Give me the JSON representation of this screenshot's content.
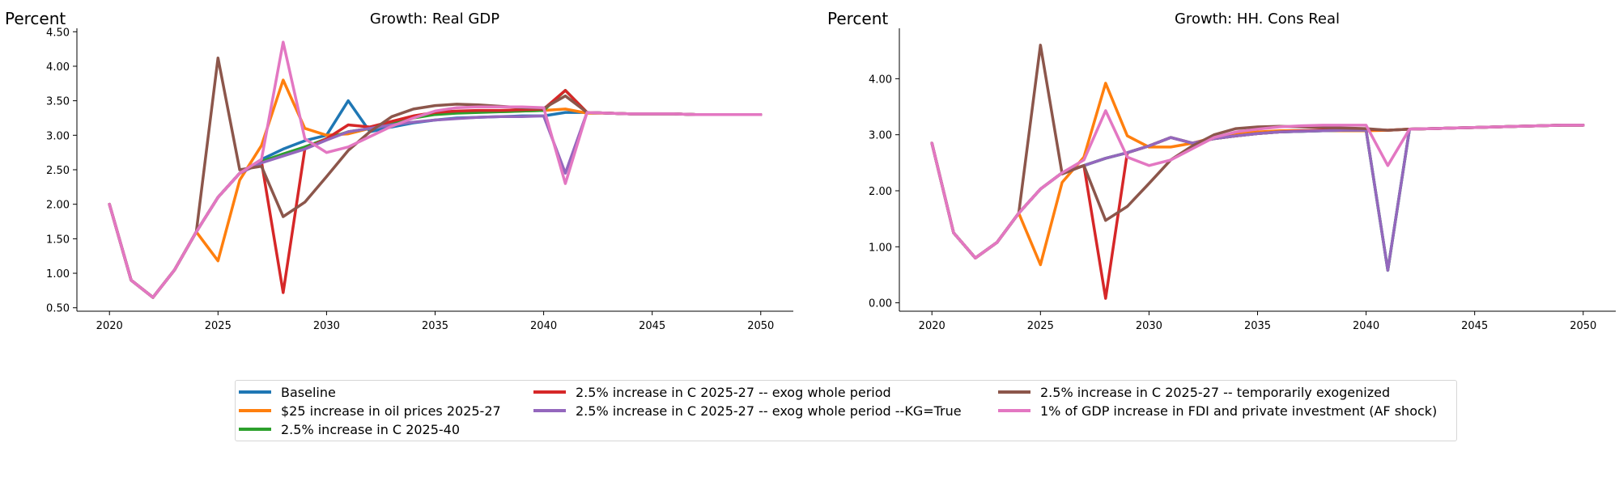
{
  "chart_data": [
    {
      "type": "line",
      "title": "Growth: Real GDP",
      "ylabel": "Percent",
      "xlabel": "",
      "xlim": [
        2018.5,
        2051.5
      ],
      "ylim": [
        0.45,
        4.55
      ],
      "xticks": [
        2020,
        2025,
        2030,
        2035,
        2040,
        2045,
        2050
      ],
      "yticks": [
        "0.50",
        "1.00",
        "1.50",
        "2.00",
        "2.50",
        "3.00",
        "3.50",
        "4.00",
        "4.50"
      ],
      "x": [
        2020,
        2021,
        2022,
        2023,
        2024,
        2025,
        2026,
        2027,
        2028,
        2029,
        2030,
        2031,
        2032,
        2033,
        2034,
        2035,
        2036,
        2037,
        2038,
        2039,
        2040,
        2041,
        2042,
        2043,
        2044,
        2045,
        2046,
        2047,
        2048,
        2049,
        2050
      ],
      "series": [
        {
          "name": "Baseline",
          "values": [
            2.0,
            0.9,
            0.65,
            1.05,
            1.6,
            2.1,
            2.45,
            2.65,
            2.8,
            2.92,
            3.0,
            3.5,
            3.05,
            3.12,
            3.18,
            3.22,
            3.25,
            3.26,
            3.27,
            3.28,
            3.28,
            3.33,
            3.33,
            3.32,
            3.31,
            3.31,
            3.31,
            3.3,
            3.3,
            3.3,
            3.3
          ]
        },
        {
          "name": "$25 increase in oil prices 2025-27",
          "values": [
            2.0,
            0.9,
            0.65,
            1.05,
            1.6,
            1.18,
            2.35,
            2.85,
            3.8,
            3.1,
            3.0,
            3.02,
            3.1,
            3.2,
            3.27,
            3.31,
            3.33,
            3.34,
            3.34,
            3.35,
            3.36,
            3.38,
            3.32,
            3.32,
            3.31,
            3.31,
            3.31,
            3.3,
            3.3,
            3.3,
            3.3
          ]
        },
        {
          "name": "2.5% increase in C 2025-40",
          "values": [
            2.0,
            0.9,
            0.65,
            1.05,
            1.6,
            2.1,
            2.45,
            2.62,
            2.73,
            2.83,
            2.95,
            3.05,
            3.1,
            3.18,
            3.25,
            3.3,
            3.32,
            3.33,
            3.34,
            3.35,
            3.36,
            3.65,
            3.33,
            3.32,
            3.31,
            3.31,
            3.31,
            3.3,
            3.3,
            3.3,
            3.3
          ]
        },
        {
          "name": "2.5% increase in C 2025-27 -- exog whole period",
          "values": [
            2.0,
            0.9,
            0.65,
            1.05,
            1.6,
            2.1,
            2.45,
            2.62,
            0.72,
            2.8,
            2.95,
            3.15,
            3.12,
            3.2,
            3.28,
            3.33,
            3.35,
            3.36,
            3.36,
            3.37,
            3.38,
            3.65,
            3.33,
            3.32,
            3.31,
            3.31,
            3.31,
            3.3,
            3.3,
            3.3,
            3.3
          ]
        },
        {
          "name": "2.5% increase in C 2025-27 -- exog whole period --KG=True",
          "values": [
            2.0,
            0.9,
            0.65,
            1.05,
            1.6,
            2.1,
            2.45,
            2.6,
            2.7,
            2.8,
            2.93,
            3.05,
            3.1,
            3.15,
            3.19,
            3.22,
            3.24,
            3.26,
            3.27,
            3.27,
            3.28,
            2.45,
            3.33,
            3.32,
            3.31,
            3.31,
            3.31,
            3.3,
            3.3,
            3.3,
            3.3
          ]
        },
        {
          "name": "2.5% increase in C 2025-27 -- temporarily exogenized",
          "values": [
            2.0,
            0.9,
            0.65,
            1.05,
            1.6,
            4.12,
            2.5,
            2.55,
            1.82,
            2.03,
            2.4,
            2.78,
            3.05,
            3.27,
            3.38,
            3.43,
            3.45,
            3.44,
            3.42,
            3.4,
            3.39,
            3.57,
            3.33,
            3.32,
            3.31,
            3.31,
            3.31,
            3.3,
            3.3,
            3.3,
            3.3
          ]
        },
        {
          "name": "1% of GDP increase in FDI and private investment (AF shock)",
          "values": [
            2.0,
            0.9,
            0.65,
            1.05,
            1.6,
            2.1,
            2.45,
            2.65,
            4.35,
            2.95,
            2.75,
            2.83,
            2.98,
            3.13,
            3.25,
            3.35,
            3.4,
            3.41,
            3.41,
            3.41,
            3.4,
            2.3,
            3.33,
            3.32,
            3.31,
            3.31,
            3.31,
            3.3,
            3.3,
            3.3,
            3.3
          ]
        }
      ]
    },
    {
      "type": "line",
      "title": "Growth: HH. Cons Real",
      "ylabel": "Percent",
      "xlabel": "",
      "xlim": [
        2018.5,
        2051.5
      ],
      "ylim": [
        -0.15,
        4.9
      ],
      "xticks": [
        2020,
        2025,
        2030,
        2035,
        2040,
        2045,
        2050
      ],
      "yticks": [
        "0.00",
        "1.00",
        "2.00",
        "3.00",
        "4.00"
      ],
      "x": [
        2020,
        2021,
        2022,
        2023,
        2024,
        2025,
        2026,
        2027,
        2028,
        2029,
        2030,
        2031,
        2032,
        2033,
        2034,
        2035,
        2036,
        2037,
        2038,
        2039,
        2040,
        2041,
        2042,
        2043,
        2044,
        2045,
        2046,
        2047,
        2048,
        2049,
        2050
      ],
      "series": [
        {
          "name": "Baseline",
          "values": [
            2.85,
            1.25,
            0.8,
            1.08,
            1.6,
            2.03,
            2.32,
            2.45,
            2.58,
            2.68,
            2.8,
            2.95,
            2.85,
            2.93,
            2.98,
            3.02,
            3.05,
            3.06,
            3.07,
            3.08,
            3.08,
            0.58,
            3.1,
            3.11,
            3.12,
            3.13,
            3.14,
            3.15,
            3.16,
            3.17,
            3.17
          ]
        },
        {
          "name": "$25 increase in oil prices 2025-27",
          "values": [
            2.85,
            1.25,
            0.8,
            1.08,
            1.6,
            0.68,
            2.15,
            2.6,
            3.92,
            2.98,
            2.78,
            2.78,
            2.85,
            2.95,
            3.02,
            3.05,
            3.07,
            3.07,
            3.07,
            3.07,
            3.07,
            3.08,
            3.1,
            3.11,
            3.12,
            3.13,
            3.14,
            3.15,
            3.16,
            3.17,
            3.17
          ]
        },
        {
          "name": "2.5% increase in C 2025-40",
          "values": [
            2.85,
            1.25,
            0.8,
            1.08,
            1.6,
            2.03,
            2.32,
            2.45,
            2.58,
            2.68,
            2.8,
            2.95,
            2.85,
            2.93,
            2.98,
            3.02,
            3.05,
            3.06,
            3.07,
            3.08,
            3.08,
            0.58,
            3.1,
            3.11,
            3.12,
            3.13,
            3.14,
            3.15,
            3.16,
            3.17,
            3.17
          ]
        },
        {
          "name": "2.5% increase in C 2025-27 -- exog whole period",
          "values": [
            2.85,
            1.25,
            0.8,
            1.08,
            1.6,
            2.03,
            2.32,
            2.45,
            0.08,
            2.68,
            2.8,
            2.95,
            2.85,
            2.93,
            2.98,
            3.02,
            3.05,
            3.07,
            3.08,
            3.09,
            3.1,
            3.08,
            3.1,
            3.11,
            3.12,
            3.13,
            3.14,
            3.15,
            3.16,
            3.17,
            3.17
          ]
        },
        {
          "name": "2.5% increase in C 2025-27 -- exog whole period --KG=True",
          "values": [
            2.85,
            1.25,
            0.8,
            1.08,
            1.6,
            2.03,
            2.32,
            2.45,
            2.58,
            2.68,
            2.8,
            2.95,
            2.85,
            2.93,
            2.98,
            3.02,
            3.05,
            3.06,
            3.07,
            3.08,
            3.08,
            0.58,
            3.1,
            3.11,
            3.12,
            3.13,
            3.14,
            3.15,
            3.16,
            3.17,
            3.17
          ]
        },
        {
          "name": "2.5% increase in C 2025-27 -- temporarily exogenized",
          "values": [
            2.85,
            1.25,
            0.8,
            1.08,
            1.6,
            4.6,
            2.3,
            2.45,
            1.47,
            1.72,
            2.13,
            2.55,
            2.8,
            3.0,
            3.11,
            3.14,
            3.15,
            3.14,
            3.13,
            3.12,
            3.11,
            3.08,
            3.1,
            3.11,
            3.12,
            3.13,
            3.14,
            3.15,
            3.16,
            3.17,
            3.17
          ]
        },
        {
          "name": "1% of GDP increase in FDI and private investment (AF shock)",
          "values": [
            2.85,
            1.25,
            0.8,
            1.08,
            1.6,
            2.03,
            2.32,
            2.55,
            3.43,
            2.6,
            2.45,
            2.55,
            2.75,
            2.95,
            3.05,
            3.1,
            3.14,
            3.16,
            3.17,
            3.17,
            3.17,
            2.45,
            3.1,
            3.11,
            3.12,
            3.13,
            3.14,
            3.15,
            3.16,
            3.17,
            3.17
          ]
        }
      ]
    }
  ],
  "colors": [
    "#1f77b4",
    "#ff7f0e",
    "#2ca02c",
    "#d62728",
    "#9467bd",
    "#8c564b",
    "#e377c2"
  ],
  "legend": {
    "placement": "bottom-center",
    "items": [
      "Baseline",
      "$25 increase in oil prices 2025-27",
      "2.5% increase in C 2025-40",
      "2.5% increase in C 2025-27 -- exog whole period",
      "2.5% increase in C 2025-27 -- exog whole period --KG=True",
      "2.5% increase in C 2025-27 -- temporarily exogenized",
      "1% of GDP increase in FDI and private investment (AF shock)"
    ]
  }
}
